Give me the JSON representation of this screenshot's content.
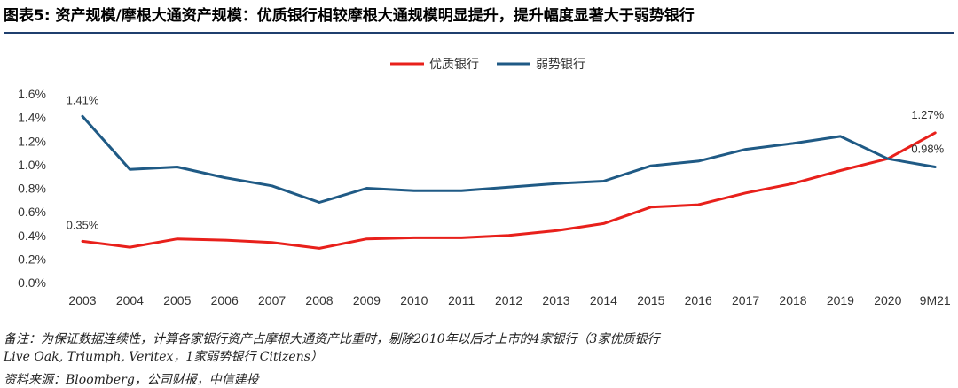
{
  "title": "图表5:  资产规模/摩根大通资产规模：优质银行相较摩根大通规模明显提升，提升幅度显著大于弱势银行",
  "notes": {
    "line1": "备注：为保证数据连续性，计算各家银行资产占摩根大通资产比重时，剔除2010年以后才上市的4家银行（3家优质银行",
    "line2": "Live Oak, Triumph, Veritex，1家弱势银行 Citizens）",
    "source": "资料来源：Bloomberg，公司财报，中信建投"
  },
  "colors": {
    "good": "#E8201B",
    "weak": "#1F5A85",
    "title_rule": "#1F3F6E"
  },
  "chart_data": {
    "type": "line",
    "categories": [
      "2003",
      "2004",
      "2005",
      "2006",
      "2007",
      "2008",
      "2009",
      "2010",
      "2011",
      "2012",
      "2013",
      "2014",
      "2015",
      "2016",
      "2017",
      "2018",
      "2019",
      "2020",
      "9M21"
    ],
    "series": [
      {
        "name": "优质银行",
        "color": "#E8201B",
        "values": [
          0.35,
          0.3,
          0.37,
          0.36,
          0.34,
          0.29,
          0.37,
          0.38,
          0.38,
          0.4,
          0.44,
          0.5,
          0.64,
          0.66,
          0.76,
          0.84,
          0.95,
          1.05,
          1.27
        ]
      },
      {
        "name": "弱势银行",
        "color": "#1F5A85",
        "values": [
          1.41,
          0.96,
          0.98,
          0.89,
          0.82,
          0.68,
          0.8,
          0.78,
          0.78,
          0.81,
          0.84,
          0.86,
          0.99,
          1.03,
          1.13,
          1.18,
          1.24,
          1.05,
          0.98
        ]
      }
    ],
    "yticks": [
      "0.0%",
      "0.2%",
      "0.4%",
      "0.6%",
      "0.8%",
      "1.0%",
      "1.2%",
      "1.4%",
      "1.6%"
    ],
    "ylim": [
      0,
      1.6
    ],
    "y_unit": "%",
    "grid": false,
    "legend_position": "top-center",
    "data_labels": [
      {
        "series": 1,
        "index": 0,
        "text": "1.41%"
      },
      {
        "series": 0,
        "index": 0,
        "text": "0.35%"
      },
      {
        "series": 0,
        "index": 18,
        "text": "1.27%"
      },
      {
        "series": 1,
        "index": 18,
        "text": "0.98%"
      }
    ]
  }
}
